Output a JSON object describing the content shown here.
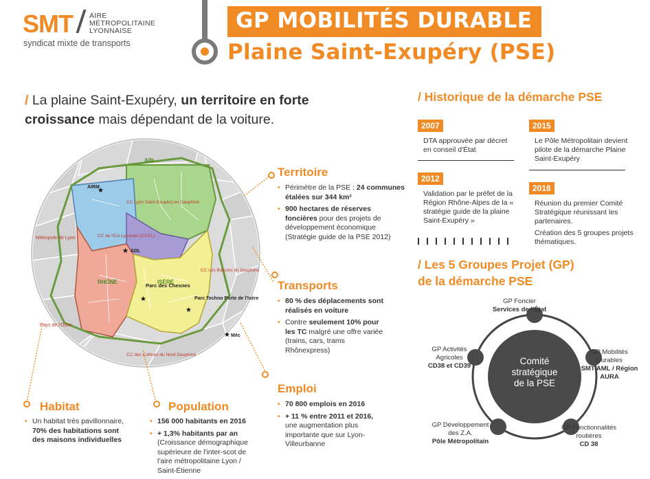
{
  "header": {
    "logo_smt": "SMT",
    "logo_aire": [
      "AIRE",
      "MÉTROPOLITAINE",
      "LYONNAISE"
    ],
    "logo_sub": "syndicat mixte de transports",
    "title_line1": "GP MOBILITÉS DURABLE",
    "title_line2": "Plaine Saint-Exupéry (PSE)"
  },
  "lead": {
    "slash": "/",
    "part1": " La plaine Saint-Exupéry, ",
    "bold1": "un territoire en forte croissance",
    "part2": " mais dépendant de la voiture."
  },
  "map": {
    "region_labels": {
      "ain": "AIN",
      "rhone": "RHÔNE",
      "isere": "ISÈRE",
      "metropole": "Métropole de Lyon",
      "pays_ozon": "Pays de l'Ozon",
      "collines": "CC des Collines du Nord Dauphiné",
      "balcons": "CC Les Balcons du Dauphiné",
      "ccel": "CC de l'Est Lyonnais (CCEL)",
      "ccmdp": "CC Lyon Saint Exupéry en Dauphiné"
    },
    "sites": {
      "airm": "AIRM",
      "adl": "ADL",
      "parc_chesnes": "Parc des Chesnes",
      "parc_techno": "Parc Techno Porte de l'Isère",
      "meca": "Méc"
    }
  },
  "territoire": {
    "title": "Territoire",
    "items": [
      {
        "pre": "Périmètre de la PSE : ",
        "bold": "24 communes étalées sur 344 km²",
        "post": ""
      },
      {
        "pre": "",
        "bold": "900 hectares de réserves foncières",
        "post": " pour des projets de développement économique (Stratégie guide de la PSE 2012)"
      }
    ]
  },
  "transports": {
    "title": "Transports",
    "items": [
      {
        "pre": "",
        "bold": "80 % des déplacements sont réalisés en voiture",
        "post": ""
      },
      {
        "pre": "Contre ",
        "bold": "seulement 10% pour les TC",
        "post": " malgré une offre variée (trains, cars, trams Rhônexpress)"
      }
    ]
  },
  "emploi": {
    "title": "Emploi",
    "items": [
      {
        "pre": "",
        "bold": "70 800 emplois en 2016",
        "post": ""
      },
      {
        "pre": "",
        "bold": "+ 11 % entre 2011 et 2016,",
        "post": " une augmentation plus importante que sur Lyon-Villeurbanne"
      }
    ]
  },
  "habitat": {
    "title": "Habitat",
    "items": [
      {
        "pre": "Un habitat très pavillonnaire, ",
        "bold": "70% des habitations sont des maisons individuelles",
        "post": ""
      }
    ]
  },
  "population": {
    "title": "Population",
    "items": [
      {
        "pre": "",
        "bold": "156 000 habitants en 2016",
        "post": ""
      },
      {
        "pre": "",
        "bold": "+ 1,3% habitants par an",
        "post": " (Croissance démographique supérieure de l'inter-scot de l'aire métropolitaine Lyon / Saint-Étienne"
      }
    ]
  },
  "historique": {
    "title": "/ Historique de la démarche PSE",
    "events": [
      {
        "year": "2007",
        "text": "DTA approuvée par décret en conseil d'État"
      },
      {
        "year": "2015",
        "text": "Le Pôle Métropolitain devient pilote de la démarche Plaine Saint-Exupéry"
      },
      {
        "year": "2012",
        "text": "Validation par le préfet de la Région Rhône-Alpes de la « stratégie guide de la plaine Saint-Exupéry »"
      },
      {
        "year": "2018",
        "text": "Réunion du premier Comité Stratégique réunissant les partenaires.",
        "text2": "Création des 5 groupes projets thématiques."
      }
    ]
  },
  "groupes": {
    "title_line1": "/ Les 5 Groupes Projet (GP)",
    "title_line2": "de la démarche PSE",
    "center": "Comité stratégique de la PSE",
    "items": [
      {
        "name": "GP Foncier",
        "lead": "Services de l'État"
      },
      {
        "name": "GP Mobilités Durables",
        "lead": "SMT AML / Région AURA"
      },
      {
        "name": "GP Fonctionnalités routières",
        "lead": "CD 38"
      },
      {
        "name": "GP Développement des Z.A.",
        "lead": "Pôle Métropolitain"
      },
      {
        "name": "GP Activités Agricoles",
        "lead": "CD38 et CD39"
      }
    ]
  },
  "colors": {
    "accent": "#f08a24",
    "dark": "#4a4a4a",
    "ain_green": "#a9d58c",
    "ccel_blue": "#9ccbea",
    "adl_purple": "#a79bd6",
    "rhone_red": "#f0a899",
    "isere_yellow": "#f3ef94",
    "grey": "#d6d6d6"
  }
}
